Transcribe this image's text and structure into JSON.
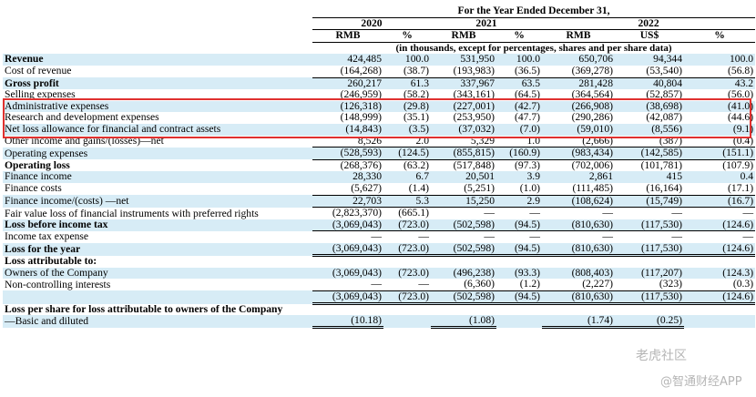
{
  "header": {
    "period": "For the Year Ended December 31,",
    "years": [
      "2020",
      "2021",
      "2022"
    ],
    "units": [
      "RMB",
      "%",
      "RMB",
      "%",
      "RMB",
      "US$",
      "%"
    ],
    "note": "(in thousands, except for percentages, shares and per share data)"
  },
  "rows": [
    {
      "label": "Revenue",
      "bold": true,
      "shade": true,
      "v": [
        "424,485",
        "100.0",
        "531,950",
        "100.0",
        "650,706",
        "94,344",
        "100.0"
      ]
    },
    {
      "label": "Cost of revenue",
      "bold": false,
      "shade": false,
      "v": [
        "(164,268)",
        "(38.7)",
        "(193,983)",
        "(36.5)",
        "(369,278)",
        "(53,540)",
        "(56.8)"
      ]
    },
    {
      "label": "Gross profit",
      "bold": true,
      "shade": true,
      "v": [
        "260,217",
        "61.3",
        "337,967",
        "63.5",
        "281,428",
        "40,804",
        "43.2"
      ]
    },
    {
      "label": "Selling expenses",
      "bold": false,
      "shade": false,
      "v": [
        "(246,959)",
        "(58.2)",
        "(343,161)",
        "(64.5)",
        "(364,564)",
        "(52,857)",
        "(56.0)"
      ]
    },
    {
      "label": "Administrative expenses",
      "bold": false,
      "shade": true,
      "v": [
        "(126,318)",
        "(29.8)",
        "(227,001)",
        "(42.7)",
        "(266,908)",
        "(38,698)",
        "(41.0)"
      ]
    },
    {
      "label": "Research and development expenses",
      "bold": false,
      "shade": false,
      "v": [
        "(148,999)",
        "(35.1)",
        "(253,950)",
        "(47.7)",
        "(290,286)",
        "(42,087)",
        "(44.6)"
      ]
    },
    {
      "label": "Net loss allowance for financial and contract assets",
      "bold": false,
      "shade": true,
      "v": [
        "(14,843)",
        "(3.5)",
        "(37,032)",
        "(7.0)",
        "(59,010)",
        "(8,556)",
        "(9.1)"
      ]
    },
    {
      "label": "Other income and gains/(losses)—net",
      "bold": false,
      "shade": false,
      "v": [
        "8,526",
        "2.0",
        "5,329",
        "1.0",
        "(2,666)",
        "(387)",
        "(0.4)"
      ]
    },
    {
      "label": "Operating expenses",
      "bold": false,
      "shade": true,
      "v": [
        "(528,593)",
        "(124.5)",
        "(855,815)",
        "(160.9)",
        "(983,434)",
        "(142,585)",
        "(151.1)"
      ]
    },
    {
      "label": "Operating loss",
      "bold": true,
      "shade": false,
      "v": [
        "(268,376)",
        "(63.2)",
        "(517,848)",
        "(97.3)",
        "(702,006)",
        "(101,781)",
        "(107.9)"
      ]
    },
    {
      "label": "Finance income",
      "bold": false,
      "shade": true,
      "v": [
        "28,330",
        "6.7",
        "20,501",
        "3.9",
        "2,861",
        "415",
        "0.4"
      ]
    },
    {
      "label": "Finance costs",
      "bold": false,
      "shade": false,
      "v": [
        "(5,627)",
        "(1.4)",
        "(5,251)",
        "(1.0)",
        "(111,485)",
        "(16,164)",
        "(17.1)"
      ]
    },
    {
      "label": "Finance income/(costs) —net",
      "bold": false,
      "shade": true,
      "v": [
        "22,703",
        "5.3",
        "15,250",
        "2.9",
        "(108,624)",
        "(15,749)",
        "(16.7)"
      ]
    },
    {
      "label": "Fair value loss of financial instruments with preferred rights",
      "bold": false,
      "shade": false,
      "v": [
        "(2,823,370)",
        "(665.1)",
        "—",
        "—",
        "—",
        "—",
        "—"
      ]
    },
    {
      "label": "Loss before income tax",
      "bold": true,
      "shade": true,
      "v": [
        "(3,069,043)",
        "(723.0)",
        "(502,598)",
        "(94.5)",
        "(810,630)",
        "(117,530)",
        "(124.6)"
      ]
    },
    {
      "label": "Income tax expense",
      "bold": false,
      "shade": false,
      "v": [
        "—",
        "—",
        "—",
        "—",
        "—",
        "—",
        "—"
      ]
    },
    {
      "label": "Loss for the year",
      "bold": true,
      "shade": true,
      "v": [
        "(3,069,043)",
        "(723.0)",
        "(502,598)",
        "(94.5)",
        "(810,630)",
        "(117,530)",
        "(124.6)"
      ]
    },
    {
      "label": "Loss attributable to:",
      "bold": true,
      "shade": false,
      "v": [
        "",
        "",
        "",
        "",
        "",
        "",
        ""
      ]
    },
    {
      "label": "Owners of the Company",
      "bold": false,
      "shade": true,
      "v": [
        "(3,069,043)",
        "(723.0)",
        "(496,238)",
        "(93.3)",
        "(808,403)",
        "(117,207)",
        "(124.3)"
      ]
    },
    {
      "label": "Non-controlling interests",
      "bold": false,
      "shade": false,
      "v": [
        "—",
        "—",
        "(6,360)",
        "(1.2)",
        "(2,227)",
        "(323)",
        "(0.3)"
      ]
    },
    {
      "label": "",
      "bold": false,
      "shade": true,
      "v": [
        "(3,069,043)",
        "(723.0)",
        "(502,598)",
        "(94.5)",
        "(810,630)",
        "(117,530)",
        "(124.6)"
      ]
    },
    {
      "label": "Loss per share for loss attributable to owners of the Company",
      "bold": true,
      "shade": false,
      "v": [
        "",
        "",
        "",
        "",
        "",
        "",
        ""
      ]
    },
    {
      "label": "—Basic and diluted",
      "bold": false,
      "shade": true,
      "v": [
        "(10.18)",
        "",
        "(1.08)",
        "",
        "(1.74)",
        "(0.25)",
        ""
      ]
    }
  ],
  "watermark": {
    "line1": "老虎社区",
    "line2": "@智通财经APP"
  },
  "colors": {
    "shade": "#d7ecf6",
    "highlight": "#e0312f"
  }
}
